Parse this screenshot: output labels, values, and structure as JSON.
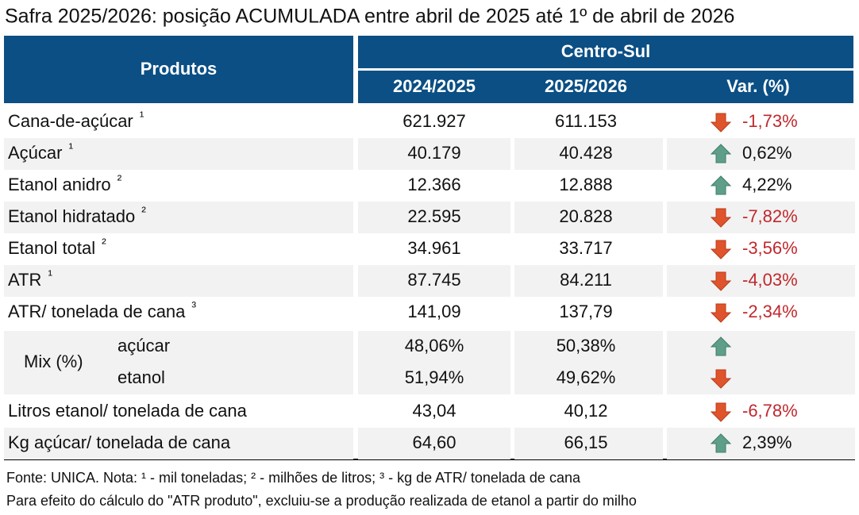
{
  "title": "Safra 2025/2026: posição ACUMULADA entre abril de 2025 até 1º de abril de 2026",
  "table": {
    "header": {
      "products": "Produtos",
      "region": "Centro-Sul",
      "col1": "2024/2025",
      "col2": "2025/2026",
      "col3": "Var. (%)"
    },
    "rows": [
      {
        "label": "Cana-de-açúcar",
        "note": "1",
        "v1": "621.927",
        "v2": "611.153",
        "var": "-1,73%",
        "arrow": "down"
      },
      {
        "label": "Açúcar",
        "note": "1",
        "v1": "40.179",
        "v2": "40.428",
        "var": "0,62%",
        "arrow": "up"
      },
      {
        "label": "Etanol anidro",
        "note": "2",
        "v1": "12.366",
        "v2": "12.888",
        "var": "4,22%",
        "arrow": "up"
      },
      {
        "label": "Etanol hidratado",
        "note": "2",
        "v1": "22.595",
        "v2": "20.828",
        "var": "-7,82%",
        "arrow": "down"
      },
      {
        "label": "Etanol total",
        "note": "2",
        "v1": "34.961",
        "v2": "33.717",
        "var": "-3,56%",
        "arrow": "down"
      },
      {
        "label": "ATR",
        "note": "1",
        "v1": "87.745",
        "v2": "84.211",
        "var": "-4,03%",
        "arrow": "down"
      },
      {
        "label": "ATR/ tonelada de cana",
        "note": "3",
        "v1": "141,09",
        "v2": "137,79",
        "var": "-2,34%",
        "arrow": "down"
      }
    ],
    "mix": {
      "label": "Mix (%)",
      "items": [
        {
          "label": "açúcar",
          "v1": "48,06%",
          "v2": "50,38%",
          "arrow": "up"
        },
        {
          "label": "etanol",
          "v1": "51,94%",
          "v2": "49,62%",
          "arrow": "down"
        }
      ]
    },
    "rows_after": [
      {
        "label": "Litros etanol/ tonelada de cana",
        "v1": "43,04",
        "v2": "40,12",
        "var": "-6,78%",
        "arrow": "down"
      },
      {
        "label": "Kg açúcar/ tonelada de cana",
        "v1": "64,60",
        "v2": "66,15",
        "var": "2,39%",
        "arrow": "up"
      }
    ]
  },
  "footer": [
    "Fonte: UNICA. Nota: ¹ - mil toneladas; ² - milhões de litros; ³ - kg de ATR/ tonelada de cana",
    "Para efeito do cálculo do \"ATR produto\", excluiu-se a produção realizada de etanol a partir do milho"
  ]
}
